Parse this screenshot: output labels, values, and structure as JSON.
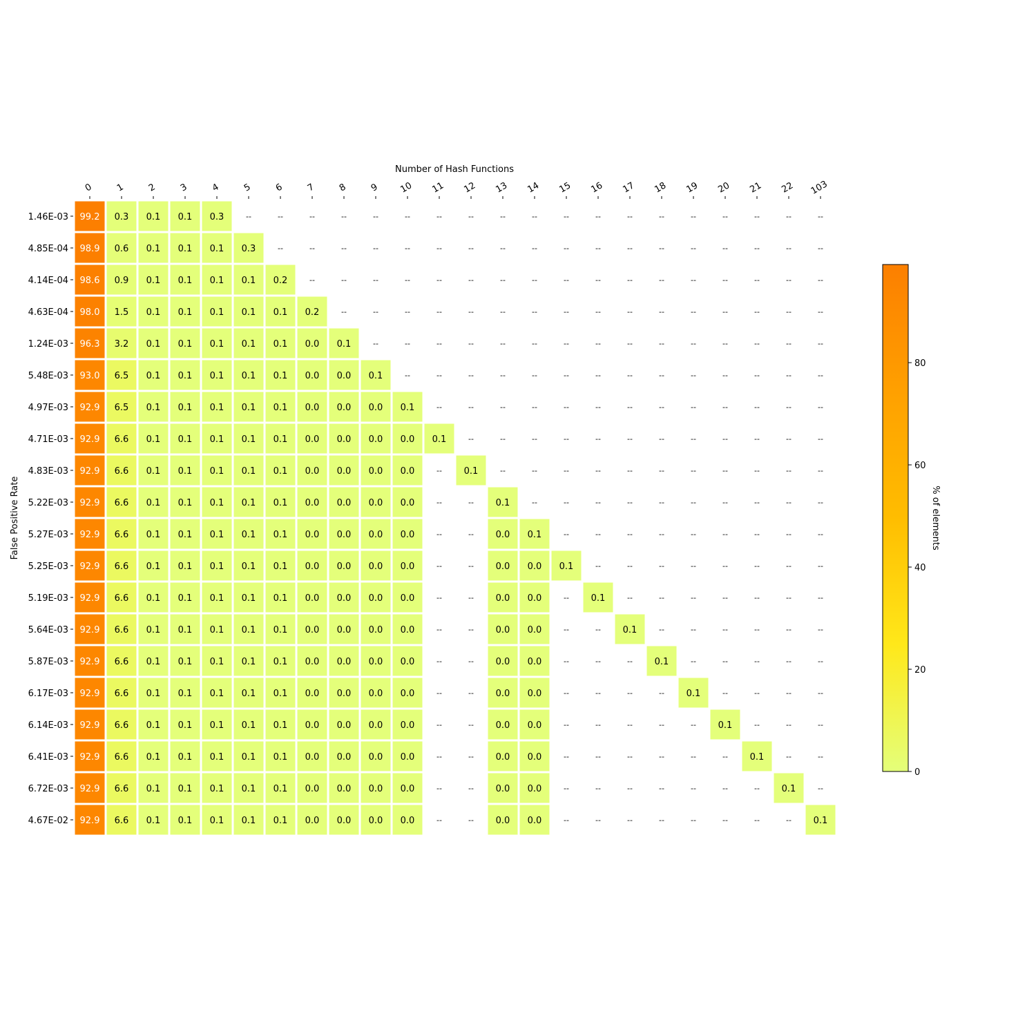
{
  "chart_data": {
    "type": "heatmap",
    "title": "",
    "xlabel": "Number of Hash Functions",
    "ylabel": "False Positive Rate",
    "x_tick_position": "top",
    "x_categories": [
      "0",
      "1",
      "2",
      "3",
      "4",
      "5",
      "6",
      "7",
      "8",
      "9",
      "10",
      "11",
      "12",
      "13",
      "14",
      "15",
      "16",
      "17",
      "18",
      "19",
      "20",
      "21",
      "22",
      "103"
    ],
    "y_categories": [
      "1.46E-03",
      "4.85E-04",
      "4.14E-04",
      "4.63E-04",
      "1.24E-03",
      "5.48E-03",
      "4.97E-03",
      "4.71E-03",
      "4.83E-03",
      "5.22E-03",
      "5.27E-03",
      "5.25E-03",
      "5.19E-03",
      "5.64E-03",
      "5.87E-03",
      "6.17E-03",
      "6.14E-03",
      "6.41E-03",
      "6.72E-03",
      "4.67E-02"
    ],
    "missing_label": "--",
    "values": [
      [
        99.2,
        0.3,
        0.1,
        0.1,
        0.3,
        null,
        null,
        null,
        null,
        null,
        null,
        null,
        null,
        null,
        null,
        null,
        null,
        null,
        null,
        null,
        null,
        null,
        null,
        null
      ],
      [
        98.9,
        0.6,
        0.1,
        0.1,
        0.1,
        0.3,
        null,
        null,
        null,
        null,
        null,
        null,
        null,
        null,
        null,
        null,
        null,
        null,
        null,
        null,
        null,
        null,
        null,
        null
      ],
      [
        98.6,
        0.9,
        0.1,
        0.1,
        0.1,
        0.1,
        0.2,
        null,
        null,
        null,
        null,
        null,
        null,
        null,
        null,
        null,
        null,
        null,
        null,
        null,
        null,
        null,
        null,
        null
      ],
      [
        98.0,
        1.5,
        0.1,
        0.1,
        0.1,
        0.1,
        0.1,
        0.2,
        null,
        null,
        null,
        null,
        null,
        null,
        null,
        null,
        null,
        null,
        null,
        null,
        null,
        null,
        null,
        null
      ],
      [
        96.3,
        3.2,
        0.1,
        0.1,
        0.1,
        0.1,
        0.1,
        0.0,
        0.1,
        null,
        null,
        null,
        null,
        null,
        null,
        null,
        null,
        null,
        null,
        null,
        null,
        null,
        null,
        null
      ],
      [
        93.0,
        6.5,
        0.1,
        0.1,
        0.1,
        0.1,
        0.1,
        0.0,
        0.0,
        0.1,
        null,
        null,
        null,
        null,
        null,
        null,
        null,
        null,
        null,
        null,
        null,
        null,
        null,
        null
      ],
      [
        92.9,
        6.5,
        0.1,
        0.1,
        0.1,
        0.1,
        0.1,
        0.0,
        0.0,
        0.0,
        0.1,
        null,
        null,
        null,
        null,
        null,
        null,
        null,
        null,
        null,
        null,
        null,
        null,
        null
      ],
      [
        92.9,
        6.6,
        0.1,
        0.1,
        0.1,
        0.1,
        0.1,
        0.0,
        0.0,
        0.0,
        0.0,
        0.1,
        null,
        null,
        null,
        null,
        null,
        null,
        null,
        null,
        null,
        null,
        null,
        null
      ],
      [
        92.9,
        6.6,
        0.1,
        0.1,
        0.1,
        0.1,
        0.1,
        0.0,
        0.0,
        0.0,
        0.0,
        null,
        0.1,
        null,
        null,
        null,
        null,
        null,
        null,
        null,
        null,
        null,
        null,
        null
      ],
      [
        92.9,
        6.6,
        0.1,
        0.1,
        0.1,
        0.1,
        0.1,
        0.0,
        0.0,
        0.0,
        0.0,
        null,
        null,
        0.1,
        null,
        null,
        null,
        null,
        null,
        null,
        null,
        null,
        null,
        null
      ],
      [
        92.9,
        6.6,
        0.1,
        0.1,
        0.1,
        0.1,
        0.1,
        0.0,
        0.0,
        0.0,
        0.0,
        null,
        null,
        0.0,
        0.1,
        null,
        null,
        null,
        null,
        null,
        null,
        null,
        null,
        null
      ],
      [
        92.9,
        6.6,
        0.1,
        0.1,
        0.1,
        0.1,
        0.1,
        0.0,
        0.0,
        0.0,
        0.0,
        null,
        null,
        0.0,
        0.0,
        0.1,
        null,
        null,
        null,
        null,
        null,
        null,
        null,
        null
      ],
      [
        92.9,
        6.6,
        0.1,
        0.1,
        0.1,
        0.1,
        0.1,
        0.0,
        0.0,
        0.0,
        0.0,
        null,
        null,
        0.0,
        0.0,
        null,
        0.1,
        null,
        null,
        null,
        null,
        null,
        null,
        null
      ],
      [
        92.9,
        6.6,
        0.1,
        0.1,
        0.1,
        0.1,
        0.1,
        0.0,
        0.0,
        0.0,
        0.0,
        null,
        null,
        0.0,
        0.0,
        null,
        null,
        0.1,
        null,
        null,
        null,
        null,
        null,
        null
      ],
      [
        92.9,
        6.6,
        0.1,
        0.1,
        0.1,
        0.1,
        0.1,
        0.0,
        0.0,
        0.0,
        0.0,
        null,
        null,
        0.0,
        0.0,
        null,
        null,
        null,
        0.1,
        null,
        null,
        null,
        null,
        null
      ],
      [
        92.9,
        6.6,
        0.1,
        0.1,
        0.1,
        0.1,
        0.1,
        0.0,
        0.0,
        0.0,
        0.0,
        null,
        null,
        0.0,
        0.0,
        null,
        null,
        null,
        null,
        0.1,
        null,
        null,
        null,
        null
      ],
      [
        92.9,
        6.6,
        0.1,
        0.1,
        0.1,
        0.1,
        0.1,
        0.0,
        0.0,
        0.0,
        0.0,
        null,
        null,
        0.0,
        0.0,
        null,
        null,
        null,
        null,
        null,
        0.1,
        null,
        null,
        null
      ],
      [
        92.9,
        6.6,
        0.1,
        0.1,
        0.1,
        0.1,
        0.1,
        0.0,
        0.0,
        0.0,
        0.0,
        null,
        null,
        0.0,
        0.0,
        null,
        null,
        null,
        null,
        null,
        null,
        0.1,
        null,
        null
      ],
      [
        92.9,
        6.6,
        0.1,
        0.1,
        0.1,
        0.1,
        0.1,
        0.0,
        0.0,
        0.0,
        0.0,
        null,
        null,
        0.0,
        0.0,
        null,
        null,
        null,
        null,
        null,
        null,
        null,
        0.1,
        null
      ],
      [
        92.9,
        6.6,
        0.1,
        0.1,
        0.1,
        0.1,
        0.1,
        0.0,
        0.0,
        0.0,
        0.0,
        null,
        null,
        0.0,
        0.0,
        null,
        null,
        null,
        null,
        null,
        null,
        null,
        null,
        0.1
      ]
    ],
    "colorbar": {
      "label": "% of elements",
      "range": [
        0,
        99.2
      ],
      "ticks": [
        0,
        20,
        40,
        60,
        80
      ],
      "colors": [
        "#e4ff7a",
        "#ffe81a",
        "#ffbd00",
        "#ffa000",
        "#fc7f00"
      ]
    }
  }
}
